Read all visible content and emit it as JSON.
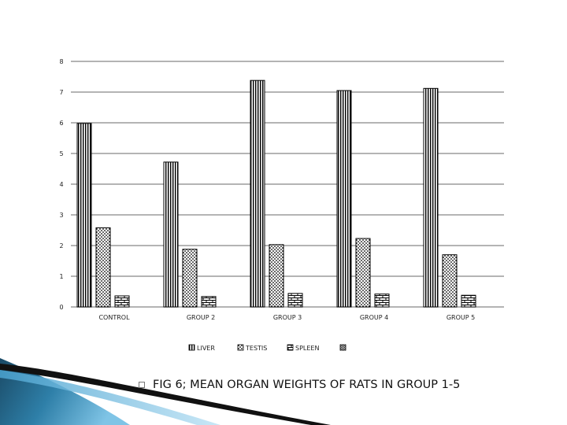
{
  "chart_data": {
    "type": "bar",
    "categories": [
      "CONTROL",
      "GROUP 2",
      "GROUP 3",
      "GROUP 4",
      "GROUP 5"
    ],
    "series": [
      {
        "name": "LIVER",
        "pattern": "vertical-stripes",
        "values": [
          5.98,
          4.72,
          7.38,
          7.05,
          7.12
        ]
      },
      {
        "name": "TESTIS",
        "pattern": "dots",
        "values": [
          2.58,
          1.88,
          2.03,
          2.23,
          1.7
        ]
      },
      {
        "name": "SPLEEN",
        "pattern": "bricks",
        "values": [
          0.36,
          0.34,
          0.44,
          0.42,
          0.38
        ]
      },
      {
        "name": "",
        "pattern": "checker",
        "values": [
          0,
          0,
          0,
          0,
          0
        ]
      }
    ],
    "yticks": [
      0,
      1,
      2,
      3,
      4,
      5,
      6,
      7,
      8
    ],
    "ylim": [
      0,
      8
    ],
    "grid": true,
    "legend_position": "bottom",
    "title": "",
    "xlabel": "",
    "ylabel": ""
  },
  "caption": {
    "text": "FIG 6; MEAN ORGAN WEIGHTS OF RATS IN GROUP 1-5",
    "bullet_icon": "square-bullet-icon"
  },
  "colors": {
    "ribbon_dark": "#1a4a66",
    "ribbon_mid": "#2e7fa8",
    "ribbon_light": "#7fc4e6",
    "grid": "#888888",
    "axis": "#444444"
  }
}
